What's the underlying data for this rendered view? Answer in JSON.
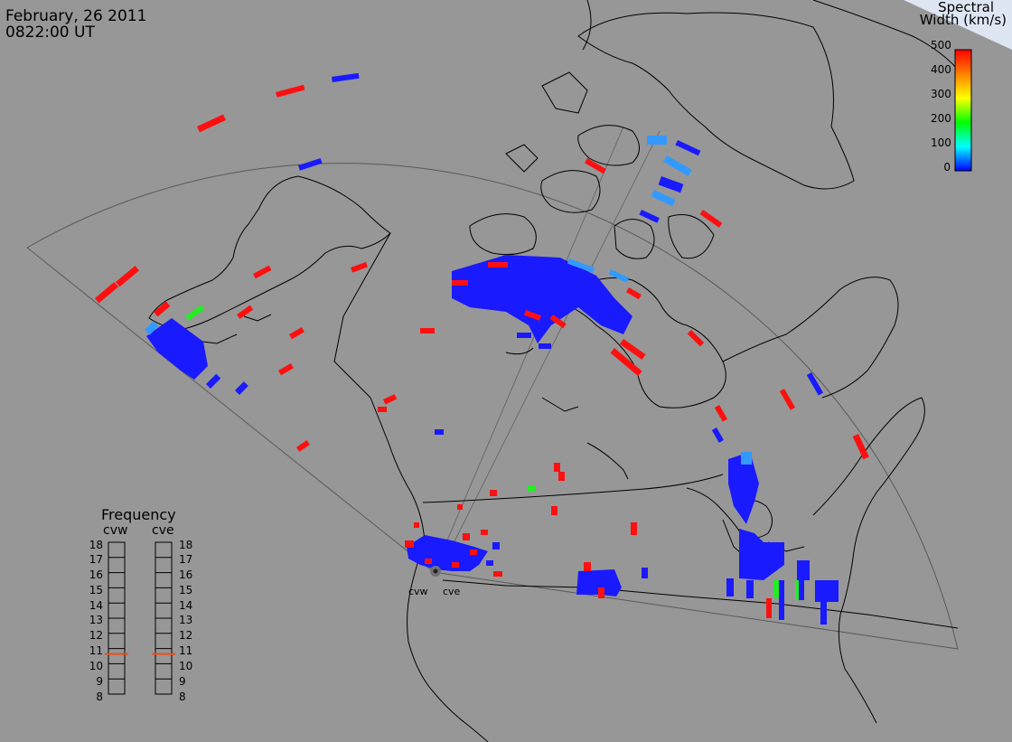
{
  "header": {
    "date": "February, 26 2011",
    "time": "0822:00 UT"
  },
  "colorbar": {
    "title_line1": "Spectral",
    "title_line2": "Width (km/s)",
    "ticks": [
      "500",
      "400",
      "300",
      "200",
      "100",
      "0"
    ],
    "colors": [
      "#ff0000",
      "#ff8000",
      "#ffff00",
      "#00ff00",
      "#00ffff",
      "#0000ff"
    ]
  },
  "frequency": {
    "title": "Frequency",
    "radar1": "cvw",
    "radar2": "cve",
    "ticks": [
      "18",
      "17",
      "16",
      "15",
      "14",
      "13",
      "12",
      "11",
      "10",
      "9",
      "8"
    ],
    "cvw_value": 11,
    "cve_value": 11
  },
  "sites": {
    "west": "cvw",
    "east": "cve"
  },
  "colors": {
    "background": "#979797",
    "coast": "#000000",
    "low_width": "#1a1aff",
    "mid_width": "#3399ff",
    "high_width": "#ff1010",
    "green": "#22ee22"
  }
}
